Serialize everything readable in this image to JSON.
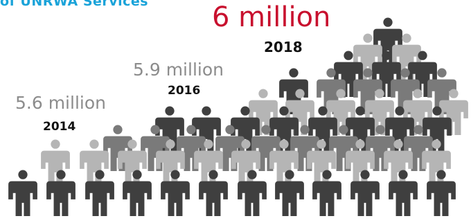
{
  "chart_data": {
    "type": "pictogram",
    "title_fragment": "of UNRWA Services",
    "points": [
      {
        "year": "2014",
        "value": 5.6,
        "label": "5.6 million"
      },
      {
        "year": "2016",
        "value": 5.9,
        "label": "5.9 million"
      },
      {
        "year": "2018",
        "value": 6,
        "label": "6 million"
      }
    ]
  },
  "colors": {
    "title": "#1aa3d9",
    "highlight": "#c8102e",
    "label_gray": "#8c8c8c",
    "year_text": "#111111",
    "figure_dark": "#3f3f3f",
    "figure_mid": "#7a7a7a",
    "figure_light": "#b5b5b5"
  },
  "icon": "person-silhouette-icon"
}
